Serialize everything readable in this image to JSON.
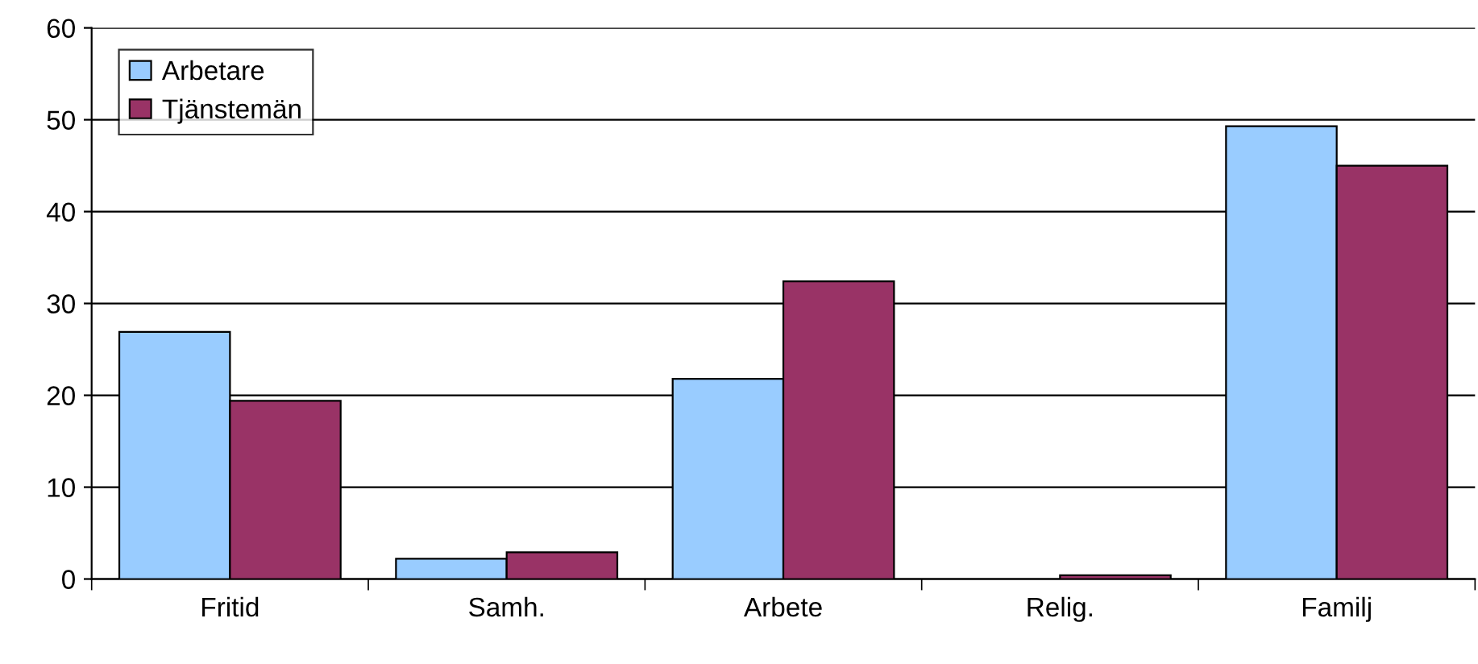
{
  "chart_data": {
    "type": "bar",
    "categories": [
      "Fritid",
      "Samh.",
      "Arbete",
      "Relig.",
      "Familj"
    ],
    "series": [
      {
        "name": "Arbetare",
        "color": "#99ccff",
        "values": [
          26.9,
          2.2,
          21.8,
          null,
          49.3
        ]
      },
      {
        "name": "Tjänstemän",
        "color": "#993366",
        "values": [
          19.4,
          2.9,
          32.4,
          0.4,
          45
        ]
      }
    ],
    "ylim": [
      0,
      60
    ],
    "yticks": [
      0,
      10,
      20,
      30,
      40,
      50,
      60
    ],
    "grid": "y",
    "legend": "top left"
  }
}
